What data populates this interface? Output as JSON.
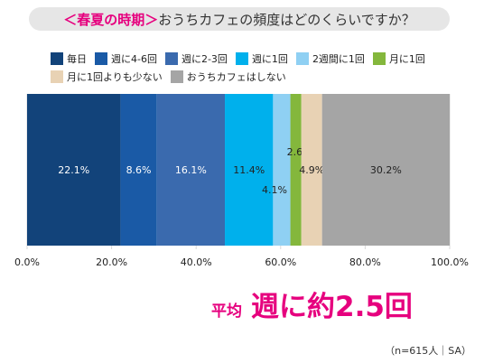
{
  "title": {
    "highlight": "＜春夏の時期＞",
    "question": "おうちカフェの頻度はどのくらいですか？"
  },
  "chart_data": {
    "type": "bar",
    "orientation": "horizontal-stacked-100",
    "series": [
      {
        "name": "毎日",
        "value": 22.1,
        "label": "22.1%",
        "color": "#12437a",
        "label_color": "#ffffff"
      },
      {
        "name": "週に4-6回",
        "value": 8.6,
        "label": "8.6%",
        "color": "#1a5aa6",
        "label_color": "#ffffff"
      },
      {
        "name": "週に2-3回",
        "value": 16.1,
        "label": "16.1%",
        "color": "#3a6aae",
        "label_color": "#ffffff"
      },
      {
        "name": "週に1回",
        "value": 11.4,
        "label": "11.4%",
        "color": "#00b0ec",
        "label_color": "#222222"
      },
      {
        "name": "2週間に1回",
        "value": 4.1,
        "label": "4.1%",
        "color": "#8fd0f3",
        "label_color": "#222222"
      },
      {
        "name": "月に1回",
        "value": 2.6,
        "label": "2.6%",
        "color": "#84b73c",
        "label_color": "#222222"
      },
      {
        "name": "月に1回よりも少ない",
        "value": 4.9,
        "label": "4.9%",
        "color": "#e8d2b4",
        "label_color": "#222222"
      },
      {
        "name": "おうちカフェはしない",
        "value": 30.2,
        "label": "30.2%",
        "color": "#a5a5a5",
        "label_color": "#222222"
      }
    ],
    "xlim": [
      0,
      100
    ],
    "x_ticks": [
      0,
      20,
      40,
      60,
      80,
      100
    ],
    "x_tick_labels": [
      "0.0%",
      "20.0%",
      "40.0%",
      "60.0%",
      "80.0%",
      "100.0%"
    ],
    "legend_position": "top"
  },
  "average": {
    "label": "平均",
    "value": "週に約2.5回"
  },
  "note": "（n=615人｜SA）"
}
